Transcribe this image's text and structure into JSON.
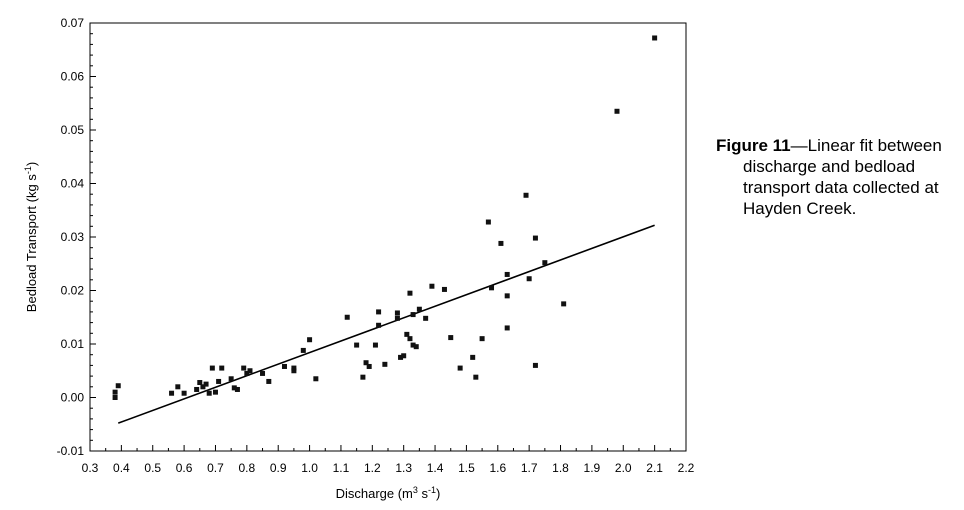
{
  "chart_data": {
    "type": "scatter",
    "xlabel": "Discharge (m3 s-1)",
    "ylabel": "Bedload Transport (kg s-1)",
    "xlabel_parts": {
      "pre": "Discharge (m",
      "sup1": "3",
      "mid": " s",
      "sup2": "-1",
      "post": ")"
    },
    "ylabel_parts": {
      "pre": "Bedload Transport (kg s",
      "sup": "-1",
      "post": ")"
    },
    "xlim": [
      0.3,
      2.2
    ],
    "ylim": [
      -0.01,
      0.07
    ],
    "xticks": [
      "0.3",
      "0.4",
      "0.5",
      "0.6",
      "0.7",
      "0.8",
      "0.9",
      "1.0",
      "1.1",
      "1.2",
      "1.3",
      "1.4",
      "1.5",
      "1.6",
      "1.7",
      "1.8",
      "1.9",
      "2.0",
      "2.1",
      "2.2"
    ],
    "yticks": [
      "-0.01",
      "0.00",
      "0.01",
      "0.02",
      "0.03",
      "0.04",
      "0.05",
      "0.06",
      "0.07"
    ],
    "grid": false,
    "series": [
      {
        "kind": "points",
        "marker": "square",
        "points": [
          [
            0.38,
            0.0
          ],
          [
            0.38,
            0.001
          ],
          [
            0.39,
            0.0022
          ],
          [
            0.56,
            0.0008
          ],
          [
            0.58,
            0.002
          ],
          [
            0.6,
            0.0008
          ],
          [
            0.64,
            0.0015
          ],
          [
            0.65,
            0.0028
          ],
          [
            0.66,
            0.002
          ],
          [
            0.67,
            0.0025
          ],
          [
            0.68,
            0.0008
          ],
          [
            0.69,
            0.0055
          ],
          [
            0.7,
            0.001
          ],
          [
            0.71,
            0.003
          ],
          [
            0.72,
            0.0055
          ],
          [
            0.75,
            0.0035
          ],
          [
            0.76,
            0.0018
          ],
          [
            0.77,
            0.0015
          ],
          [
            0.79,
            0.0055
          ],
          [
            0.8,
            0.0045
          ],
          [
            0.81,
            0.005
          ],
          [
            0.85,
            0.0045
          ],
          [
            0.87,
            0.003
          ],
          [
            0.92,
            0.0058
          ],
          [
            0.95,
            0.005
          ],
          [
            0.95,
            0.0055
          ],
          [
            0.98,
            0.0088
          ],
          [
            1.0,
            0.0108
          ],
          [
            1.02,
            0.0035
          ],
          [
            1.12,
            0.015
          ],
          [
            1.15,
            0.0098
          ],
          [
            1.17,
            0.0038
          ],
          [
            1.18,
            0.0065
          ],
          [
            1.19,
            0.0058
          ],
          [
            1.21,
            0.0098
          ],
          [
            1.22,
            0.016
          ],
          [
            1.22,
            0.0135
          ],
          [
            1.24,
            0.0062
          ],
          [
            1.28,
            0.0158
          ],
          [
            1.28,
            0.0148
          ],
          [
            1.29,
            0.0075
          ],
          [
            1.3,
            0.0078
          ],
          [
            1.31,
            0.0118
          ],
          [
            1.32,
            0.0195
          ],
          [
            1.32,
            0.011
          ],
          [
            1.33,
            0.0155
          ],
          [
            1.33,
            0.0098
          ],
          [
            1.34,
            0.0095
          ],
          [
            1.35,
            0.0165
          ],
          [
            1.37,
            0.0148
          ],
          [
            1.39,
            0.0208
          ],
          [
            1.43,
            0.0202
          ],
          [
            1.45,
            0.0112
          ],
          [
            1.48,
            0.0055
          ],
          [
            1.52,
            0.0075
          ],
          [
            1.53,
            0.0038
          ],
          [
            1.55,
            0.011
          ],
          [
            1.57,
            0.0328
          ],
          [
            1.58,
            0.0205
          ],
          [
            1.61,
            0.0288
          ],
          [
            1.63,
            0.023
          ],
          [
            1.63,
            0.019
          ],
          [
            1.63,
            0.013
          ],
          [
            1.69,
            0.0378
          ],
          [
            1.7,
            0.0222
          ],
          [
            1.72,
            0.0298
          ],
          [
            1.72,
            0.006
          ],
          [
            1.75,
            0.0252
          ],
          [
            1.81,
            0.0175
          ],
          [
            1.98,
            0.0535
          ],
          [
            2.1,
            0.0672
          ]
        ]
      },
      {
        "kind": "fit-line",
        "x": [
          0.39,
          2.1
        ],
        "y": [
          -0.0048,
          0.0322
        ]
      }
    ]
  },
  "caption": {
    "label": "Figure 11",
    "text": "—Linear fit between discharge and bedload transport data collected at Hayden Creek."
  }
}
